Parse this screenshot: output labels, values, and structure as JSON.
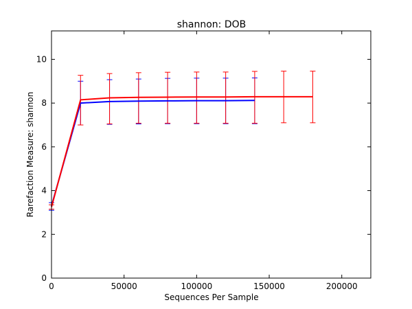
{
  "chart_data": {
    "type": "line",
    "title": "shannon: DOB",
    "xlabel": "Sequences Per Sample",
    "ylabel": "Rarefaction Measure: shannon",
    "xlim": [
      0,
      220000
    ],
    "ylim": [
      0,
      11.3
    ],
    "xticks": [
      {
        "value": 0,
        "label": "0"
      },
      {
        "value": 50000,
        "label": "50000"
      },
      {
        "value": 100000,
        "label": "100000"
      },
      {
        "value": 150000,
        "label": "150000"
      },
      {
        "value": 200000,
        "label": "200000"
      }
    ],
    "yticks": [
      {
        "value": 0,
        "label": "0"
      },
      {
        "value": 2,
        "label": "2"
      },
      {
        "value": 4,
        "label": "4"
      },
      {
        "value": 6,
        "label": "6"
      },
      {
        "value": 8,
        "label": "8"
      },
      {
        "value": 10,
        "label": "10"
      }
    ],
    "grid": false,
    "legend": "none",
    "series": [
      {
        "color": "#0000ff",
        "x": [
          10,
          20000,
          40000,
          60000,
          80000,
          100000,
          120000,
          140000
        ],
        "y": [
          3.3,
          8.0,
          8.07,
          8.09,
          8.1,
          8.11,
          8.11,
          8.12
        ],
        "err_low": [
          3.1,
          7.0,
          7.03,
          7.05,
          7.06,
          7.06,
          7.06,
          7.06
        ],
        "err_high": [
          3.45,
          9.0,
          9.07,
          9.1,
          9.13,
          9.14,
          9.14,
          9.15
        ]
      },
      {
        "color": "#ff0000",
        "x": [
          10,
          20000,
          40000,
          60000,
          80000,
          100000,
          120000,
          140000,
          160000,
          180000
        ],
        "y": [
          3.25,
          8.15,
          8.24,
          8.26,
          8.27,
          8.28,
          8.28,
          8.29,
          8.29,
          8.29
        ],
        "err_low": [
          3.15,
          7.0,
          7.05,
          7.08,
          7.08,
          7.08,
          7.08,
          7.08,
          7.1,
          7.1
        ],
        "err_high": [
          3.35,
          9.27,
          9.35,
          9.39,
          9.41,
          9.42,
          9.42,
          9.45,
          9.46,
          9.46
        ]
      }
    ]
  }
}
